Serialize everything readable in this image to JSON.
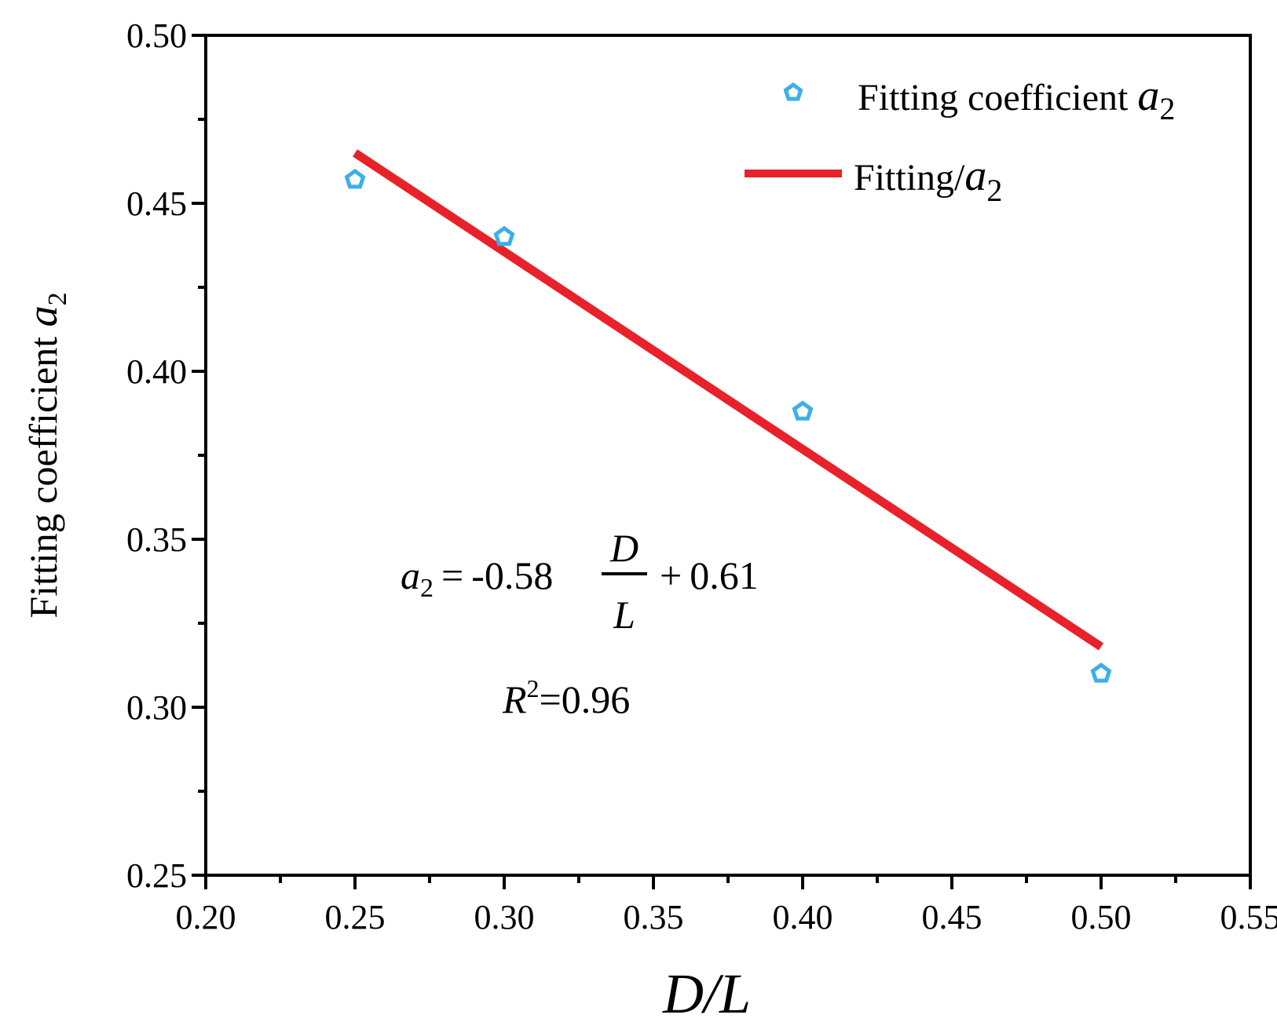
{
  "chart_data": {
    "type": "scatter",
    "xlabel": {
      "main": "D/L"
    },
    "ylabel": {
      "main": "Fitting coefficient ",
      "var": "a",
      "sub": "2"
    },
    "xlim": [
      0.2,
      0.55
    ],
    "ylim": [
      0.25,
      0.5
    ],
    "xticks": [
      "0.20",
      "0.25",
      "0.30",
      "0.35",
      "0.40",
      "0.45",
      "0.50",
      "0.55"
    ],
    "yticks": [
      "0.25",
      "0.30",
      "0.35",
      "0.40",
      "0.45",
      "0.50"
    ],
    "series": [
      {
        "name": "Fitting coefficient a2",
        "kind": "points",
        "marker": "pentagon-open",
        "color": "#3daee9",
        "x": [
          0.25,
          0.3,
          0.4,
          0.5
        ],
        "y": [
          0.457,
          0.44,
          0.388,
          0.31
        ]
      },
      {
        "name": "Fitting/a2",
        "kind": "line",
        "color": "#e8212a",
        "x": [
          0.25,
          0.5
        ],
        "y": [
          0.465,
          0.318
        ]
      }
    ],
    "legend": {
      "position": "top-right",
      "entries": [
        {
          "text": "Fitting coefficient ",
          "var": "a",
          "sub": "2"
        },
        {
          "text": "Fitting/",
          "var": "a",
          "sub": "2"
        }
      ]
    },
    "annotations": {
      "equation": {
        "lhs_var": "a",
        "lhs_sub": "2",
        "equals": "=",
        "coef": "-0.58",
        "frac_num": "D",
        "frac_den": "L",
        "plus": "+",
        "intercept": "0.61"
      },
      "r2": {
        "var": "R",
        "sup": "2",
        "value": "=0.96"
      }
    }
  }
}
